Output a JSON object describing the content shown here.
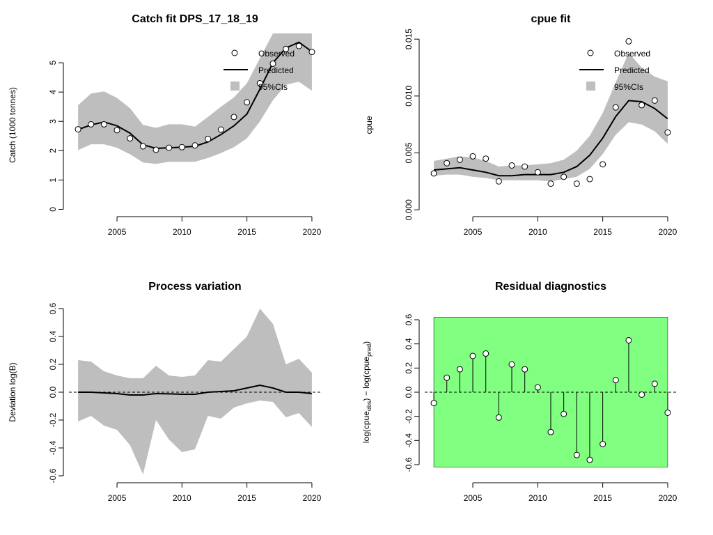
{
  "chart_data": [
    {
      "type": "line",
      "title": "Catch fit DPS_17_18_19",
      "xlabel": "",
      "ylabel": "Catch (1000 tonnes)",
      "xlim": [
        2001.3,
        2020.7
      ],
      "ylim": [
        -0.25,
        6.0
      ],
      "xticks": [
        2005,
        2010,
        2015,
        2020
      ],
      "yticks": [
        0,
        1,
        2,
        3,
        4,
        5
      ],
      "ytick_labels": [
        "0",
        "1",
        "2",
        "3",
        "4",
        "5"
      ],
      "legend": {
        "position": "top-right",
        "entries": [
          "Observed",
          "Predicted",
          "95%CIs"
        ]
      },
      "x": [
        2002,
        2003,
        2004,
        2005,
        2006,
        2007,
        2008,
        2009,
        2010,
        2011,
        2012,
        2013,
        2014,
        2015,
        2016,
        2017,
        2018,
        2019,
        2020
      ],
      "observed": [
        2.73,
        2.9,
        2.9,
        2.7,
        2.42,
        2.15,
        2.03,
        2.1,
        2.12,
        2.18,
        2.4,
        2.72,
        3.15,
        3.65,
        4.3,
        4.97,
        5.47,
        5.57,
        5.37
      ],
      "predicted": [
        2.72,
        2.88,
        2.98,
        2.85,
        2.6,
        2.2,
        2.08,
        2.1,
        2.12,
        2.15,
        2.3,
        2.55,
        2.85,
        3.25,
        4.1,
        5.0,
        5.5,
        5.7,
        5.38
      ],
      "ci_upper": [
        3.55,
        3.95,
        4.02,
        3.8,
        3.45,
        2.88,
        2.78,
        2.9,
        2.9,
        2.82,
        3.15,
        3.5,
        3.82,
        4.3,
        5.15,
        6.0,
        6.0,
        6.0,
        6.0
      ],
      "ci_lower": [
        2.02,
        2.22,
        2.22,
        2.1,
        1.88,
        1.6,
        1.55,
        1.62,
        1.62,
        1.62,
        1.75,
        1.92,
        2.12,
        2.42,
        3.0,
        3.72,
        4.25,
        4.35,
        4.05
      ],
      "colors": {
        "band": "#bebebe",
        "line": "#000000",
        "point_fill": "#ffffff"
      }
    },
    {
      "type": "line",
      "title": "cpue fit",
      "xlabel": "",
      "ylabel": "cpue",
      "xlim": [
        2001.3,
        2020.7
      ],
      "ylim": [
        -0.0006,
        0.0155
      ],
      "xticks": [
        2005,
        2010,
        2015,
        2020
      ],
      "yticks": [
        0,
        0.005,
        0.01,
        0.015
      ],
      "ytick_labels": [
        "0.000",
        "0.005",
        "0.010",
        "0.015"
      ],
      "legend": {
        "position": "top-right",
        "entries": [
          "Observed",
          "Predicted",
          "95%CIs"
        ]
      },
      "x": [
        2002,
        2003,
        2004,
        2005,
        2006,
        2007,
        2008,
        2009,
        2010,
        2011,
        2012,
        2013,
        2014,
        2015,
        2016,
        2017,
        2018,
        2019,
        2020
      ],
      "observed": [
        0.0032,
        0.0041,
        0.0044,
        0.0047,
        0.0045,
        0.0025,
        0.0039,
        0.0038,
        0.0033,
        0.0023,
        0.0029,
        0.0023,
        0.0027,
        0.004,
        0.009,
        0.0148,
        0.0092,
        0.0096,
        0.0068
      ],
      "predicted": [
        0.0035,
        0.0036,
        0.0037,
        0.0035,
        0.0033,
        0.003,
        0.003,
        0.0031,
        0.0031,
        0.0031,
        0.0033,
        0.0038,
        0.0048,
        0.0063,
        0.0082,
        0.0096,
        0.0095,
        0.0089,
        0.008
      ],
      "ci_upper": [
        0.0043,
        0.0045,
        0.0047,
        0.0046,
        0.0043,
        0.0038,
        0.0039,
        0.0039,
        0.004,
        0.0041,
        0.0044,
        0.0052,
        0.0065,
        0.0085,
        0.0112,
        0.0138,
        0.0125,
        0.0117,
        0.0113
      ],
      "ci_lower": [
        0.003,
        0.0031,
        0.0031,
        0.0029,
        0.0028,
        0.0026,
        0.0026,
        0.0026,
        0.0026,
        0.0025,
        0.0027,
        0.0029,
        0.0036,
        0.0049,
        0.0066,
        0.0077,
        0.0075,
        0.0069,
        0.0058
      ],
      "colors": {
        "band": "#bebebe",
        "line": "#000000",
        "point_fill": "#ffffff"
      }
    },
    {
      "type": "area",
      "title": "Process variation",
      "xlabel": "",
      "ylabel": "Deviation log(B)",
      "xlim": [
        2001.3,
        2020.7
      ],
      "ylim": [
        -0.65,
        0.65
      ],
      "xticks": [
        2005,
        2010,
        2015,
        2020
      ],
      "yticks": [
        -0.6,
        -0.4,
        -0.2,
        0.0,
        0.2,
        0.4,
        0.6
      ],
      "ytick_labels": [
        "-0.6",
        "-0.4",
        "-0.2",
        "0.0",
        "0.2",
        "0.4",
        "0.6"
      ],
      "reference_line": 0,
      "x": [
        2002,
        2003,
        2004,
        2005,
        2006,
        2007,
        2008,
        2009,
        2010,
        2011,
        2012,
        2013,
        2014,
        2015,
        2016,
        2017,
        2018,
        2019,
        2020
      ],
      "deviation": [
        0.0,
        0.0,
        -0.005,
        -0.01,
        -0.02,
        -0.02,
        -0.01,
        -0.012,
        -0.015,
        -0.015,
        0.0,
        0.005,
        0.01,
        0.03,
        0.05,
        0.03,
        0.0,
        0.0,
        -0.01
      ],
      "ci_upper": [
        0.23,
        0.22,
        0.15,
        0.12,
        0.1,
        0.1,
        0.19,
        0.12,
        0.11,
        0.12,
        0.23,
        0.22,
        0.31,
        0.4,
        0.6,
        0.49,
        0.2,
        0.24,
        0.14
      ],
      "ci_lower": [
        -0.21,
        -0.17,
        -0.24,
        -0.27,
        -0.38,
        -0.59,
        -0.2,
        -0.34,
        -0.43,
        -0.41,
        -0.17,
        -0.19,
        -0.11,
        -0.08,
        -0.06,
        -0.07,
        -0.18,
        -0.15,
        -0.25
      ],
      "colors": {
        "band": "#bebebe",
        "line": "#000000"
      }
    },
    {
      "type": "scatter",
      "title": "Residual diagnostics",
      "xlabel": "",
      "ylabel_parts": {
        "prefix": "log(cpue",
        "obs": "obs",
        "middle": ") − log(cpue",
        "pred": "pred",
        "suffix": ")"
      },
      "xlim": [
        2001.3,
        2020.7
      ],
      "ylim": [
        -0.75,
        0.75
      ],
      "xticks": [
        2005,
        2010,
        2015,
        2020
      ],
      "yticks": [
        -0.6,
        -0.4,
        -0.2,
        0.0,
        0.2,
        0.4,
        0.6
      ],
      "ytick_labels": [
        "-0.6",
        "-0.4",
        "-0.2",
        "0.0",
        "0.2",
        "0.4",
        "0.6"
      ],
      "reference_line": 0,
      "shaded_region": {
        "x": [
          2002,
          2020
        ],
        "y": [
          -0.62,
          0.62
        ]
      },
      "x": [
        2002,
        2003,
        2004,
        2005,
        2006,
        2007,
        2008,
        2009,
        2010,
        2011,
        2012,
        2013,
        2014,
        2015,
        2016,
        2017,
        2018,
        2019,
        2020
      ],
      "residuals": [
        -0.09,
        0.12,
        0.19,
        0.3,
        0.32,
        -0.21,
        0.23,
        0.19,
        0.04,
        -0.33,
        -0.18,
        -0.52,
        -0.56,
        -0.43,
        0.1,
        0.43,
        -0.02,
        0.07,
        -0.17
      ],
      "colors": {
        "region": "#80ff80",
        "line": "#000000",
        "point_fill": "#ffffff"
      }
    }
  ]
}
